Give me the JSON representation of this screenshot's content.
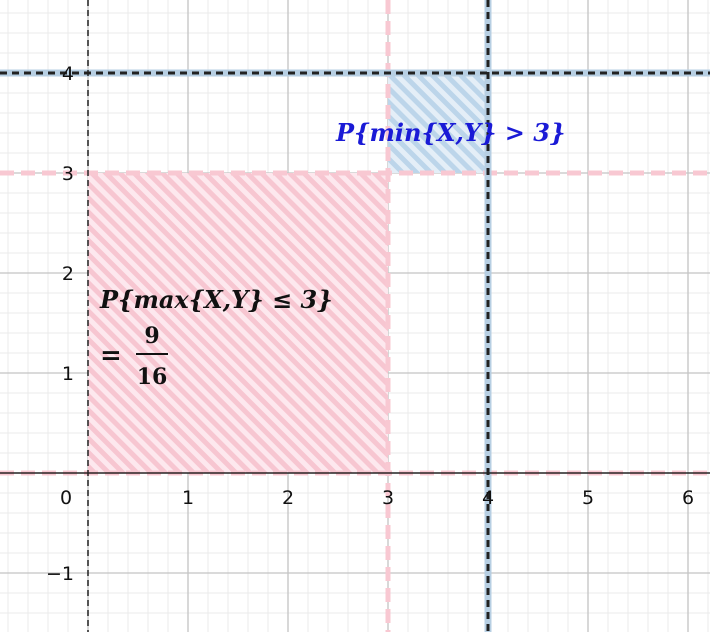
{
  "axes": {
    "x_ticks": [
      "0",
      "1",
      "2",
      "3",
      "4",
      "5",
      "6"
    ],
    "y_ticks": [
      "4",
      "3",
      "2",
      "1",
      "−1"
    ],
    "x_range": [
      -0.85,
      6.2
    ],
    "y_range": [
      -1.55,
      4.72
    ]
  },
  "lines": {
    "axis_color": "#000000",
    "pink_color": "#f8c8d2",
    "pink_positions": {
      "x": [
        3
      ],
      "y": [
        0,
        3
      ]
    },
    "blue_color": "#b7cfe3",
    "blue_positions": {
      "x": [
        4
      ],
      "y": [
        4
      ]
    },
    "black_dashed_positions": {
      "x": [
        0,
        4
      ],
      "y": [
        4
      ]
    }
  },
  "regions": {
    "max_region": {
      "x": [
        0,
        3
      ],
      "y": [
        0,
        3
      ],
      "color": "#f7c6d1"
    },
    "min_region": {
      "x": [
        3,
        4
      ],
      "y": [
        3,
        4
      ],
      "color": "#bcd5ea"
    }
  },
  "labels": {
    "min_label": {
      "text": "P{min{X,Y} > 3}",
      "color": "#1a1ad6"
    },
    "max_label": {
      "line1": "P{max{X,Y} ≤ 3}",
      "equals": "=",
      "numerator": "9",
      "denominator": "16",
      "color": "#111111"
    }
  }
}
